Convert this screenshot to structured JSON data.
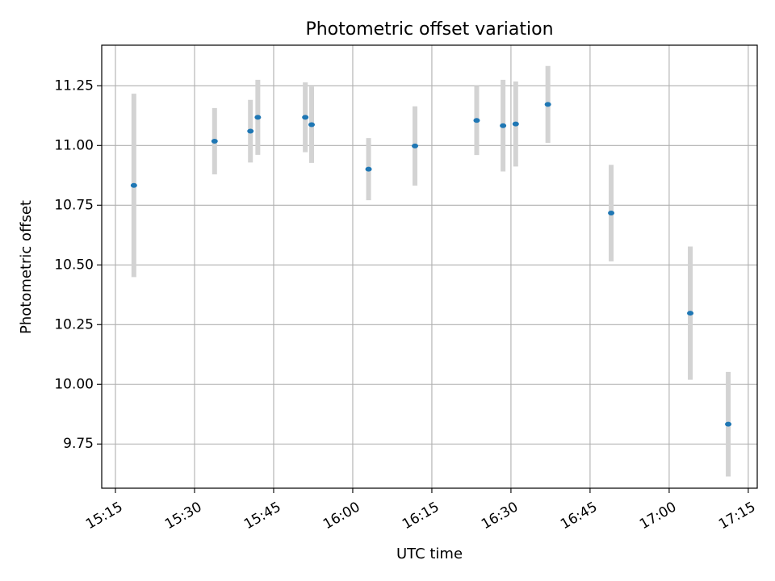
{
  "chart_data": {
    "type": "scatter",
    "title": "Photometric offset variation",
    "xlabel": "UTC time",
    "ylabel": "Photometric offset",
    "x_ticks": [
      "15:15",
      "15:30",
      "15:45",
      "16:00",
      "16:15",
      "16:30",
      "16:45",
      "17:00",
      "17:15"
    ],
    "y_ticks": [
      "9.75",
      "10.00",
      "10.25",
      "10.50",
      "10.75",
      "11.00",
      "11.25"
    ],
    "xlim": [
      "15:12.4",
      "17:16.7"
    ],
    "ylim": [
      9.565,
      11.42
    ],
    "grid": true,
    "colors": {
      "points": "#1f77b4",
      "errorbars": "#d3d3d3",
      "grid": "#b0b0b0"
    },
    "series": [
      {
        "points": [
          {
            "x": "15:18.5",
            "y": 10.833,
            "err": 0.384
          },
          {
            "x": "15:33.8",
            "y": 11.018,
            "err": 0.139
          },
          {
            "x": "15:40.6",
            "y": 11.06,
            "err": 0.131
          },
          {
            "x": "15:42.0",
            "y": 11.118,
            "err": 0.157
          },
          {
            "x": "15:51.0",
            "y": 11.118,
            "err": 0.146
          },
          {
            "x": "15:52.2",
            "y": 11.087,
            "err": 0.16
          },
          {
            "x": "16:03.0",
            "y": 10.901,
            "err": 0.13
          },
          {
            "x": "16:11.8",
            "y": 10.998,
            "err": 0.166
          },
          {
            "x": "16:23.5",
            "y": 11.105,
            "err": 0.145
          },
          {
            "x": "16:28.5",
            "y": 11.083,
            "err": 0.192
          },
          {
            "x": "16:30.9",
            "y": 11.09,
            "err": 0.178
          },
          {
            "x": "16:37.0",
            "y": 11.172,
            "err": 0.161
          },
          {
            "x": "16:49.0",
            "y": 10.717,
            "err": 0.202
          },
          {
            "x": "17:04.0",
            "y": 10.298,
            "err": 0.279
          },
          {
            "x": "17:11.2",
            "y": 9.833,
            "err": 0.219
          }
        ]
      }
    ]
  }
}
